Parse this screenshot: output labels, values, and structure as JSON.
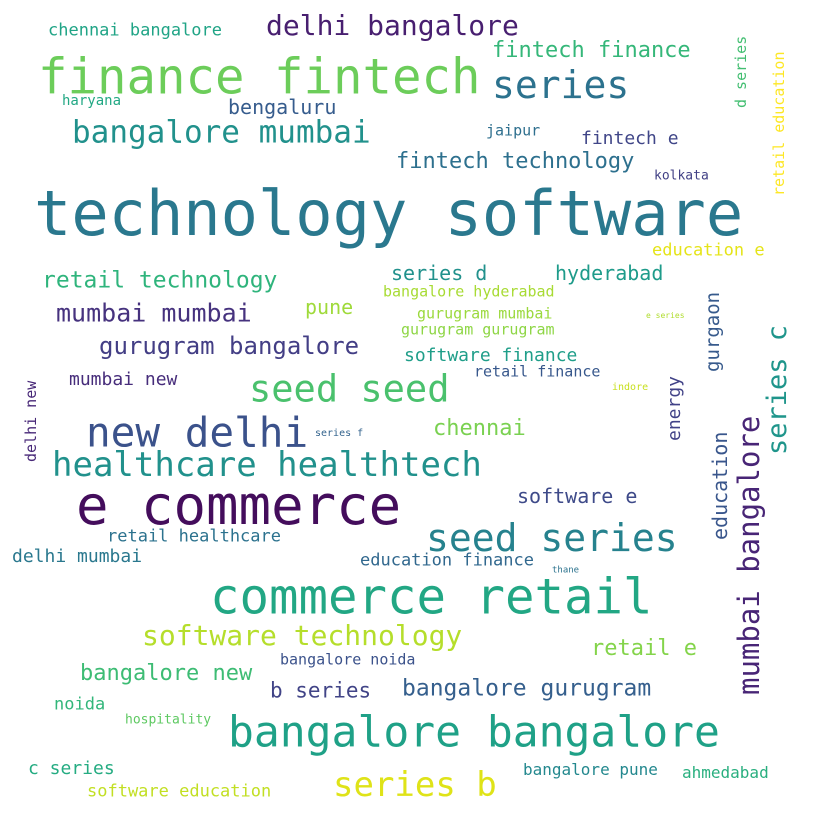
{
  "words": [
    {
      "text": "technology software",
      "color": "#2a788e"
    },
    {
      "text": "e commerce",
      "color": "#440d5c"
    },
    {
      "text": "finance fintech",
      "color": "#6ccd5a"
    },
    {
      "text": "commerce retail",
      "color": "#22a784"
    },
    {
      "text": "bangalore bangalore",
      "color": "#1fa187"
    },
    {
      "text": "new delhi",
      "color": "#3b528b"
    },
    {
      "text": "healthcare healthtech",
      "color": "#21918c"
    },
    {
      "text": "seed series",
      "color": "#26828e"
    },
    {
      "text": "seed seed",
      "color": "#4ac16d"
    },
    {
      "text": "series",
      "color": "#2c728e"
    },
    {
      "text": "series b",
      "color": "#dfe318"
    },
    {
      "text": "bangalore mumbai",
      "color": "#21918c"
    },
    {
      "text": "software technology",
      "color": "#b5de2b"
    },
    {
      "text": "delhi bangalore",
      "color": "#481f70"
    },
    {
      "text": "mumbai mumbai",
      "color": "#46327e"
    },
    {
      "text": "gurugram bangalore",
      "color": "#433e85"
    },
    {
      "text": "bangalore gurugram",
      "color": "#355f8d"
    },
    {
      "text": "retail technology",
      "color": "#2fb47c"
    },
    {
      "text": "fintech technology",
      "color": "#2d708e"
    },
    {
      "text": "bangalore new",
      "color": "#3dbc74"
    },
    {
      "text": "fintech finance",
      "color": "#35b779"
    },
    {
      "text": "b series",
      "color": "#414487"
    },
    {
      "text": "chennai",
      "color": "#7ad151"
    },
    {
      "text": "retail e",
      "color": "#84d44b"
    },
    {
      "text": "software e",
      "color": "#3e4a89"
    },
    {
      "text": "series d",
      "color": "#21918c"
    },
    {
      "text": "hyderabad",
      "color": "#1e9b8a"
    },
    {
      "text": "bengaluru",
      "color": "#365c8d"
    },
    {
      "text": "pune",
      "color": "#9fda3a"
    },
    {
      "text": "mumbai new",
      "color": "#472d7b"
    },
    {
      "text": "retail healthcare",
      "color": "#2c728e"
    },
    {
      "text": "delhi mumbai",
      "color": "#2a788e"
    },
    {
      "text": "education finance",
      "color": "#31688e"
    },
    {
      "text": "software finance",
      "color": "#1f9e89"
    },
    {
      "text": "c series",
      "color": "#25ac82"
    },
    {
      "text": "chennai bangalore",
      "color": "#20a486"
    },
    {
      "text": "bangalore pune",
      "color": "#23888e"
    },
    {
      "text": "ahmedabad",
      "color": "#29af7f"
    },
    {
      "text": "software education",
      "color": "#c2df23"
    },
    {
      "text": "bangalore noida",
      "color": "#3b528b"
    },
    {
      "text": "education e",
      "color": "#e5e419"
    },
    {
      "text": "fintech e",
      "color": "#404688"
    },
    {
      "text": "noida",
      "color": "#32b67a"
    },
    {
      "text": "retail finance",
      "color": "#38588c"
    },
    {
      "text": "gurugram mumbai",
      "color": "#9bd93c"
    },
    {
      "text": "gurugram gurugram",
      "color": "#8ed645"
    },
    {
      "text": "bangalore hyderabad",
      "color": "#a8db34"
    },
    {
      "text": "jaipur",
      "color": "#2e6f8e"
    },
    {
      "text": "haryana",
      "color": "#22a884"
    },
    {
      "text": "hospitality",
      "color": "#5ec962"
    },
    {
      "text": "kolkata",
      "color": "#424186"
    },
    {
      "text": "series f",
      "color": "#33638d"
    },
    {
      "text": "thane",
      "color": "#2c738e"
    },
    {
      "text": "indore",
      "color": "#c8e020"
    },
    {
      "text": "e series",
      "color": "#b0dd2f"
    }
  ],
  "vertical_words": [
    {
      "text": "mumbai bangalore",
      "color": "#482576"
    },
    {
      "text": "series c",
      "color": "#1f958b"
    },
    {
      "text": "education",
      "color": "#39568c"
    },
    {
      "text": "gurgaon",
      "color": "#375a8c"
    },
    {
      "text": "energy",
      "color": "#414287"
    },
    {
      "text": "delhi new",
      "color": "#482878"
    },
    {
      "text": "d series",
      "color": "#42be71"
    },
    {
      "text": "retail education",
      "color": "#fde725"
    }
  ]
}
